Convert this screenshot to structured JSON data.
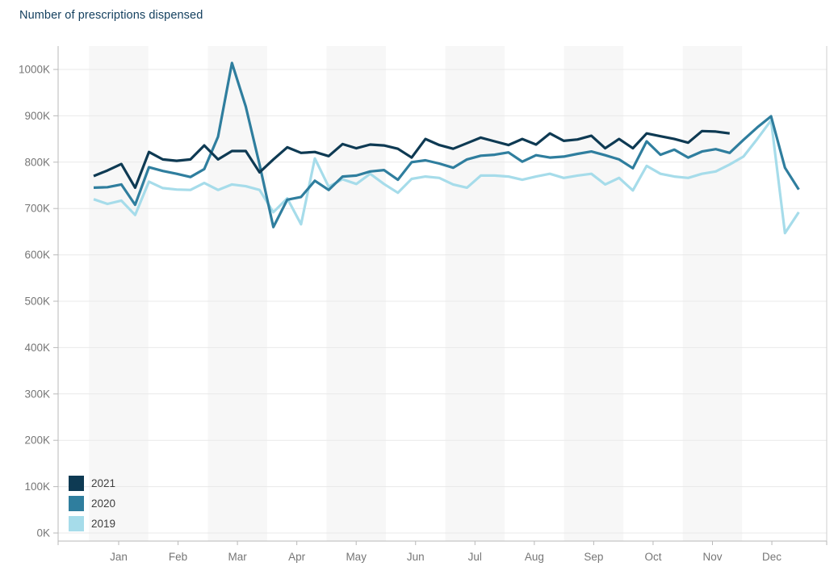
{
  "chart_data": {
    "type": "line",
    "title": "Number of prescriptions dispensed",
    "x_unit": "week (weekly data points, Jan–Dec)",
    "y_unit": "thousands of prescriptions (K)",
    "x_axis": {
      "tick_labels": [
        "Jan",
        "Feb",
        "Mar",
        "Apr",
        "May",
        "Jun",
        "Jul",
        "Aug",
        "Sep",
        "Oct",
        "Nov",
        "Dec"
      ]
    },
    "y_axis": {
      "tick_labels": [
        "0K",
        "100K",
        "200K",
        "300K",
        "400K",
        "500K",
        "600K",
        "700K",
        "800K",
        "900K",
        "1000K"
      ],
      "tick_values_k": [
        0,
        100,
        200,
        300,
        400,
        500,
        600,
        700,
        800,
        900,
        1000
      ],
      "ylim_k": [
        0,
        1060
      ]
    },
    "grid": true,
    "background_bands": "alternating light-gray vertical month bands starting at Jan",
    "legend": {
      "position": "inside plot, bottom-left",
      "entries": [
        {
          "label": "2021",
          "color": "#0e3a53"
        },
        {
          "label": "2020",
          "color": "#2f7e9e"
        },
        {
          "label": "2019",
          "color": "#a6dcea"
        }
      ]
    },
    "series": [
      {
        "name": "2021",
        "color": "#0e3a53",
        "note": "data ends mid-November",
        "values_k": [
          770,
          782,
          796,
          745,
          822,
          806,
          803,
          806,
          836,
          806,
          824,
          824,
          778,
          806,
          832,
          820,
          822,
          813,
          839,
          830,
          838,
          836,
          829,
          810,
          850,
          837,
          829,
          841,
          853,
          845,
          837,
          850,
          838,
          862,
          846,
          849,
          857,
          830,
          850,
          830,
          862,
          856,
          850,
          842,
          867,
          866,
          862
        ]
      },
      {
        "name": "2020",
        "color": "#2f7e9e",
        "values_k": [
          745,
          746,
          752,
          708,
          789,
          781,
          775,
          768,
          785,
          855,
          1014,
          920,
          795,
          660,
          719,
          725,
          760,
          740,
          769,
          771,
          780,
          783,
          762,
          800,
          804,
          797,
          788,
          806,
          814,
          816,
          821,
          801,
          815,
          810,
          812,
          818,
          823,
          815,
          806,
          787,
          845,
          816,
          827,
          810,
          823,
          828,
          820,
          848,
          875,
          899,
          788,
          741
        ]
      },
      {
        "name": "2019",
        "color": "#a6dcea",
        "values_k": [
          720,
          710,
          717,
          686,
          758,
          744,
          741,
          740,
          755,
          740,
          752,
          748,
          740,
          692,
          722,
          666,
          808,
          747,
          763,
          753,
          775,
          753,
          734,
          764,
          769,
          766,
          752,
          745,
          771,
          771,
          769,
          762,
          769,
          775,
          766,
          771,
          775,
          752,
          766,
          739,
          792,
          775,
          769,
          766,
          775,
          780,
          795,
          812,
          850,
          890,
          647,
          692
        ]
      }
    ],
    "colors": {
      "title_text": "#14405f",
      "axis_label_text": "#767676",
      "axis_line": "#b9b9b9",
      "right_border": "#cfcfcf",
      "gridline": "#e9e9e9",
      "month_band": "#f7f7f7",
      "legend_text": "#3f3f3f"
    }
  }
}
